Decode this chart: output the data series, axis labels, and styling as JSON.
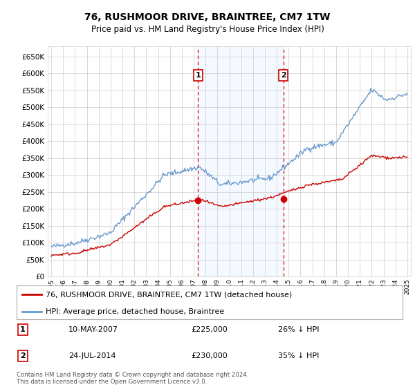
{
  "title": "76, RUSHMOOR DRIVE, BRAINTREE, CM7 1TW",
  "subtitle": "Price paid vs. HM Land Registry's House Price Index (HPI)",
  "ytick_values": [
    0,
    50000,
    100000,
    150000,
    200000,
    250000,
    300000,
    350000,
    400000,
    450000,
    500000,
    550000,
    600000,
    650000
  ],
  "ylim": [
    0,
    680000
  ],
  "purchase1": {
    "date_num": 2007.36,
    "price": 225000,
    "label": "1"
  },
  "purchase2": {
    "date_num": 2014.56,
    "price": 230000,
    "label": "2"
  },
  "legend_property": "76, RUSHMOOR DRIVE, BRAINTREE, CM7 1TW (detached house)",
  "legend_hpi": "HPI: Average price, detached house, Braintree",
  "table_rows": [
    {
      "num": "1",
      "date": "10-MAY-2007",
      "price": "£225,000",
      "pct": "26% ↓ HPI"
    },
    {
      "num": "2",
      "date": "24-JUL-2014",
      "price": "£230,000",
      "pct": "35% ↓ HPI"
    }
  ],
  "footer": "Contains HM Land Registry data © Crown copyright and database right 2024.\nThis data is licensed under the Open Government Licence v3.0.",
  "property_color": "#cc0000",
  "hpi_color": "#6699cc",
  "shaded_color": "#ddeeff",
  "grid_color": "#cccccc",
  "bg_color": "#ffffff",
  "vline_color": "#dd0000",
  "xlim_start": 1994.7,
  "xlim_end": 2025.3
}
